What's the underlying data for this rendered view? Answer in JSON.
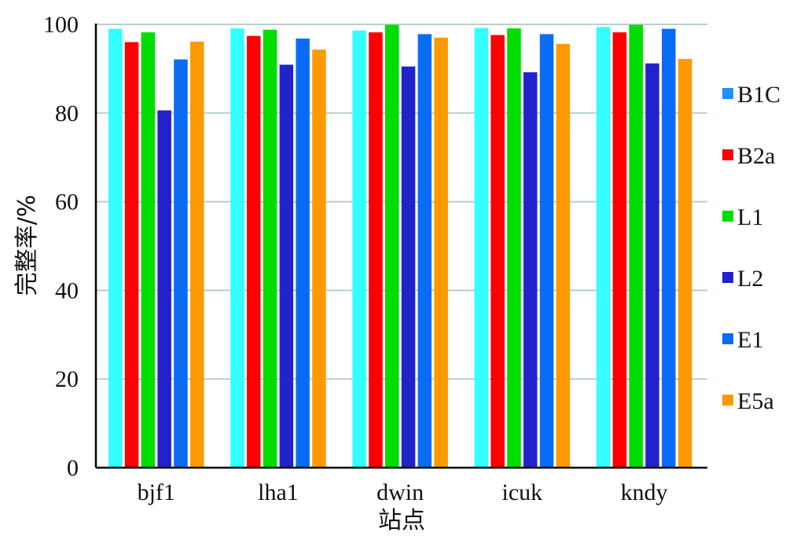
{
  "chart_data": {
    "type": "bar",
    "title": "",
    "xlabel": "站点",
    "ylabel": "完整率/%",
    "ylim": [
      0,
      100
    ],
    "yticks": [
      0,
      20,
      40,
      60,
      80,
      100
    ],
    "grid": true,
    "legend_position": "right",
    "categories": [
      "bjf1",
      "lha1",
      "dwin",
      "icuk",
      "kndy"
    ],
    "series": [
      {
        "name": "B1C",
        "values": [
          99.0,
          99.1,
          98.6,
          99.2,
          99.4
        ]
      },
      {
        "name": "B2a",
        "values": [
          96.0,
          97.4,
          98.2,
          97.6,
          98.2
        ]
      },
      {
        "name": "L1",
        "values": [
          98.2,
          98.8,
          99.9,
          99.1,
          99.9
        ]
      },
      {
        "name": "L2",
        "values": [
          80.6,
          90.9,
          90.5,
          89.2,
          91.2
        ]
      },
      {
        "name": "E1",
        "values": [
          92.1,
          96.8,
          97.8,
          97.8,
          99.0
        ]
      },
      {
        "name": "E5a",
        "values": [
          96.1,
          94.3,
          97.0,
          95.6,
          92.2
        ]
      }
    ],
    "colors": {
      "bars": [
        "#33FFFF",
        "#FF0000",
        "#00DD00",
        "#2222CC",
        "#0A6CF5",
        "#FF9900"
      ],
      "legend": [
        "#1E90FF",
        "#FF0000",
        "#00DD00",
        "#2222CC",
        "#0A6CF5",
        "#FF9900"
      ],
      "grid": "#b9cfc9",
      "axis": "#000000"
    }
  }
}
